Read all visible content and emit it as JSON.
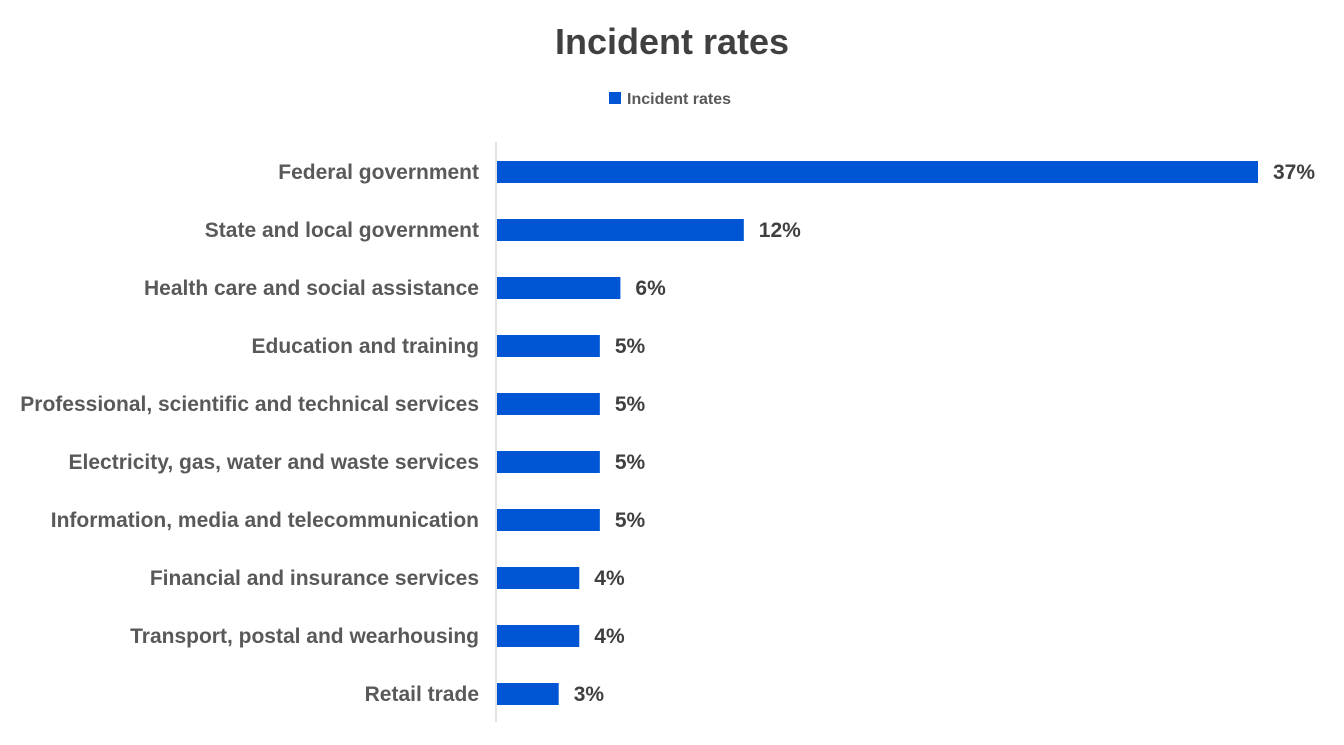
{
  "chart_data": {
    "type": "bar",
    "orientation": "horizontal",
    "title": "Incident rates",
    "legend": {
      "position": "top",
      "entries": [
        "Incident rates"
      ]
    },
    "series": [
      {
        "name": "Incident rates",
        "color": "#0055D4",
        "values": [
          37,
          12,
          6,
          5,
          5,
          5,
          5,
          4,
          4,
          3
        ]
      }
    ],
    "categories": [
      "Federal government",
      "State and local government",
      "Health care and social assistance",
      "Education and training",
      "Professional, scientific and technical services",
      "Electricity, gas, water and waste services",
      "Information, media and telecommunication",
      "Financial and insurance services",
      "Transport, postal and wearhousing",
      "Retail trade"
    ],
    "data_labels": [
      "37%",
      "12%",
      "6%",
      "5%",
      "5%",
      "5%",
      "5%",
      "4%",
      "4%",
      "3%"
    ],
    "xlabel": "",
    "ylabel": "",
    "xlim": [
      0,
      37
    ],
    "grid": false
  },
  "colors": {
    "bar": "#0055D4",
    "axis": "#D9D9D9"
  }
}
